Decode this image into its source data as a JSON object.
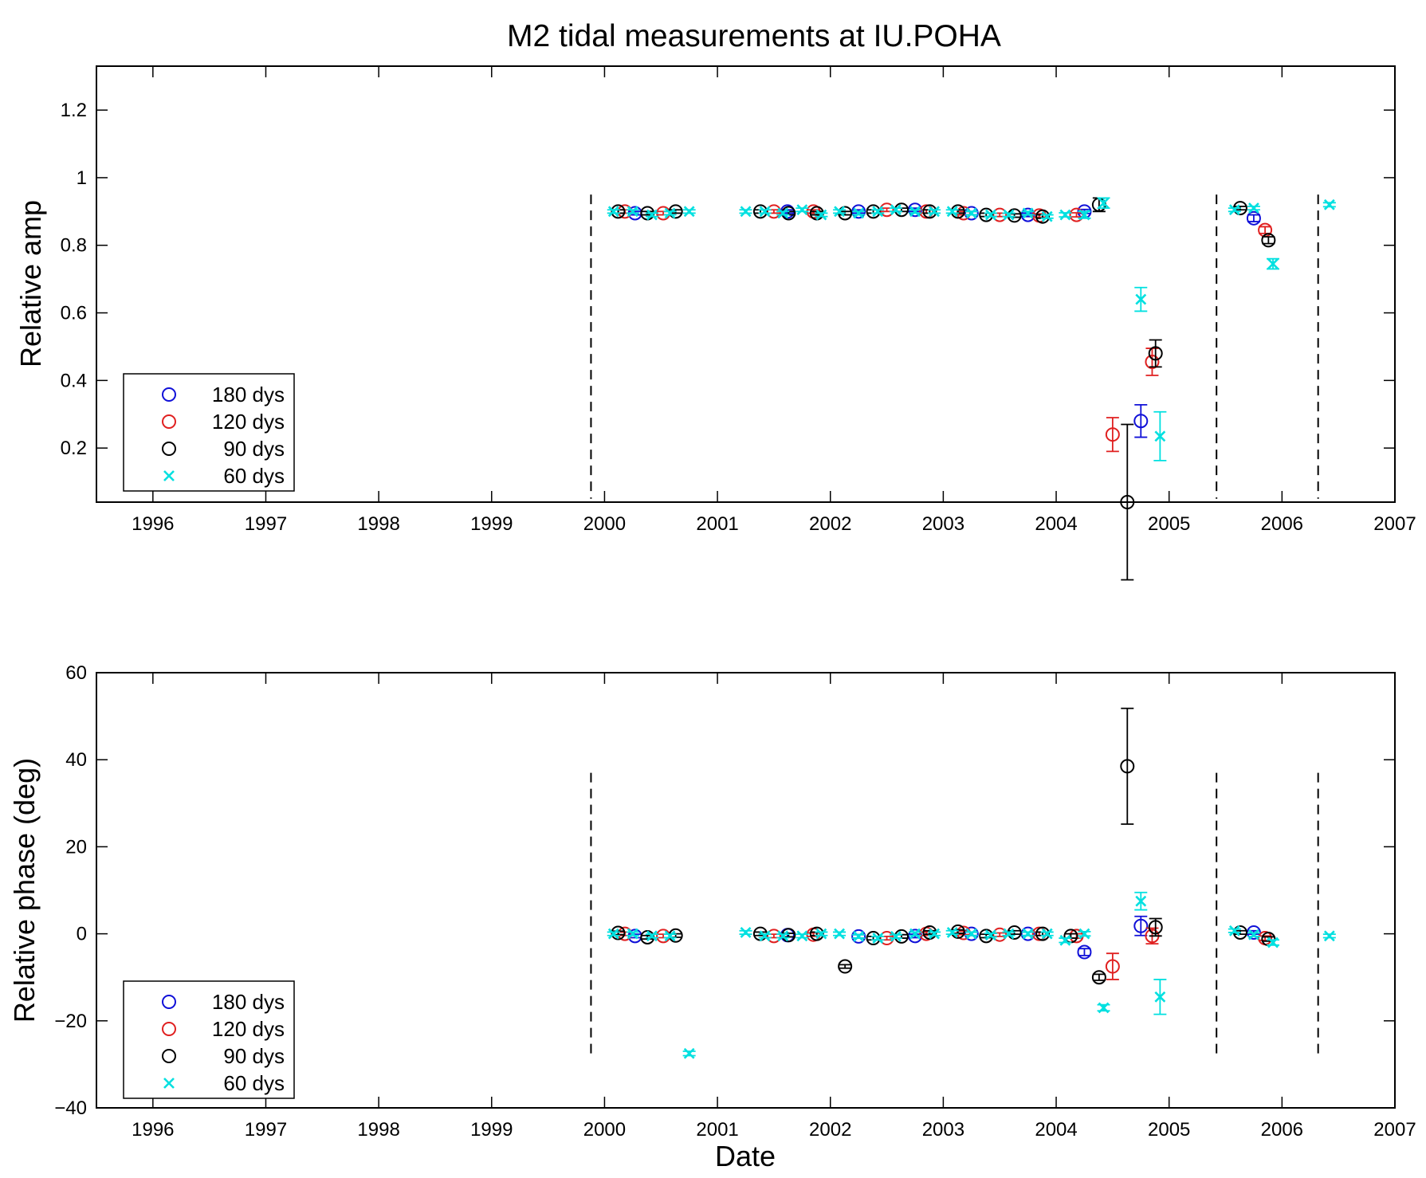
{
  "figure": {
    "title": "M2 tidal measurements at IU.POHA"
  },
  "chart_data": [
    {
      "type": "scatter",
      "title": "M2 tidal measurements at IU.POHA",
      "xlabel": "",
      "ylabel": "Relative amp",
      "x_unit": "year",
      "xlim": [
        1995.5,
        2007
      ],
      "ylim": [
        0.04,
        1.33
      ],
      "xticks": [
        1996,
        1997,
        1998,
        1999,
        2000,
        2001,
        2002,
        2003,
        2004,
        2005,
        2006,
        2007
      ],
      "xtick_labels": [
        "1996",
        "1997",
        "1998",
        "1999",
        "2000",
        "2001",
        "2002",
        "2003",
        "2004",
        "2005",
        "2006",
        "2007"
      ],
      "yticks": [
        0.2,
        0.4,
        0.6,
        0.8,
        1.0,
        1.2
      ],
      "ytick_labels": [
        "0.2",
        "0.4",
        "0.6",
        "0.8",
        "1",
        "1.2"
      ],
      "vlines": [
        1999.88,
        2005.42,
        2006.32
      ],
      "vline_span": [
        0.05,
        0.95
      ],
      "grid": false,
      "legend": "bottom-left",
      "series": [
        {
          "name": "180 dys",
          "marker": "circle",
          "color": "#1010d8",
          "points": [
            [
              2000.27,
              0.895,
              0.005
            ],
            [
              2001.62,
              0.9,
              0.005
            ],
            [
              2002.25,
              0.9,
              0.005
            ],
            [
              2002.75,
              0.905,
              0.005
            ],
            [
              2003.25,
              0.895,
              0.005
            ],
            [
              2003.75,
              0.89,
              0.005
            ],
            [
              2004.25,
              0.9,
              0.006
            ],
            [
              2004.75,
              0.28,
              0.048
            ],
            [
              2005.75,
              0.88,
              0.01
            ]
          ]
        },
        {
          "name": "120 dys",
          "marker": "circle",
          "color": "#e02020",
          "points": [
            [
              2000.18,
              0.9,
              0.005
            ],
            [
              2000.52,
              0.895,
              0.005
            ],
            [
              2001.5,
              0.9,
              0.005
            ],
            [
              2001.85,
              0.9,
              0.005
            ],
            [
              2002.5,
              0.905,
              0.005
            ],
            [
              2002.85,
              0.9,
              0.005
            ],
            [
              2003.18,
              0.895,
              0.005
            ],
            [
              2003.5,
              0.89,
              0.005
            ],
            [
              2003.85,
              0.888,
              0.005
            ],
            [
              2004.18,
              0.89,
              0.006
            ],
            [
              2004.5,
              0.24,
              0.05
            ],
            [
              2004.85,
              0.455,
              0.04
            ],
            [
              2005.85,
              0.845,
              0.01
            ]
          ]
        },
        {
          "name": "90 dys",
          "marker": "circle",
          "color": "#000000",
          "points": [
            [
              2000.12,
              0.9,
              0.005
            ],
            [
              2000.38,
              0.895,
              0.005
            ],
            [
              2000.63,
              0.9,
              0.005
            ],
            [
              2001.38,
              0.9,
              0.005
            ],
            [
              2001.63,
              0.895,
              0.005
            ],
            [
              2001.88,
              0.895,
              0.005
            ],
            [
              2002.13,
              0.895,
              0.005
            ],
            [
              2002.38,
              0.9,
              0.005
            ],
            [
              2002.63,
              0.905,
              0.005
            ],
            [
              2002.88,
              0.9,
              0.005
            ],
            [
              2003.13,
              0.9,
              0.005
            ],
            [
              2003.38,
              0.89,
              0.005
            ],
            [
              2003.63,
              0.888,
              0.005
            ],
            [
              2003.88,
              0.885,
              0.005
            ],
            [
              2004.38,
              0.92,
              0.02
            ],
            [
              2004.63,
              0.04,
              0.23
            ],
            [
              2004.88,
              0.48,
              0.04
            ],
            [
              2005.63,
              0.91,
              0.005
            ],
            [
              2005.88,
              0.815,
              0.01
            ]
          ]
        },
        {
          "name": "60 dys",
          "marker": "x",
          "color": "#00e0e0",
          "points": [
            [
              2000.08,
              0.9,
              0.005
            ],
            [
              2000.25,
              0.9,
              0.005
            ],
            [
              2000.42,
              0.89,
              0.005
            ],
            [
              2000.58,
              0.895,
              0.005
            ],
            [
              2000.75,
              0.9,
              0.005
            ],
            [
              2001.25,
              0.9,
              0.005
            ],
            [
              2001.42,
              0.9,
              0.005
            ],
            [
              2001.58,
              0.895,
              0.005
            ],
            [
              2001.75,
              0.905,
              0.005
            ],
            [
              2001.92,
              0.89,
              0.005
            ],
            [
              2002.08,
              0.9,
              0.005
            ],
            [
              2002.25,
              0.895,
              0.005
            ],
            [
              2002.42,
              0.9,
              0.005
            ],
            [
              2002.58,
              0.905,
              0.005
            ],
            [
              2002.75,
              0.9,
              0.005
            ],
            [
              2002.92,
              0.9,
              0.005
            ],
            [
              2003.08,
              0.9,
              0.005
            ],
            [
              2003.25,
              0.895,
              0.005
            ],
            [
              2003.42,
              0.89,
              0.005
            ],
            [
              2003.58,
              0.89,
              0.005
            ],
            [
              2003.75,
              0.895,
              0.005
            ],
            [
              2003.92,
              0.885,
              0.005
            ],
            [
              2004.08,
              0.89,
              0.006
            ],
            [
              2004.25,
              0.89,
              0.01
            ],
            [
              2004.42,
              0.925,
              0.015
            ],
            [
              2004.75,
              0.64,
              0.035
            ],
            [
              2004.92,
              0.235,
              0.072
            ],
            [
              2005.58,
              0.905,
              0.005
            ],
            [
              2005.75,
              0.91,
              0.005
            ],
            [
              2005.92,
              0.745,
              0.015
            ],
            [
              2006.42,
              0.92,
              0.006
            ]
          ]
        }
      ]
    },
    {
      "type": "scatter",
      "xlabel": "Date",
      "ylabel": "Relative phase (deg)",
      "x_unit": "year",
      "xlim": [
        1995.5,
        2007
      ],
      "ylim": [
        -40,
        60
      ],
      "xticks": [
        1996,
        1997,
        1998,
        1999,
        2000,
        2001,
        2002,
        2003,
        2004,
        2005,
        2006,
        2007
      ],
      "xtick_labels": [
        "1996",
        "1997",
        "1998",
        "1999",
        "2000",
        "2001",
        "2002",
        "2003",
        "2004",
        "2005",
        "2006",
        "2007"
      ],
      "yticks": [
        -40,
        -20,
        0,
        20,
        40,
        60
      ],
      "ytick_labels": [
        "−40",
        "−20",
        "0",
        "20",
        "40",
        "60"
      ],
      "vlines": [
        1999.88,
        2005.42,
        2006.32
      ],
      "vline_span": [
        -28,
        37
      ],
      "grid": false,
      "legend": "bottom-left",
      "series": [
        {
          "name": "180 dys",
          "marker": "circle",
          "color": "#1010d8",
          "points": [
            [
              2000.27,
              -0.5,
              0.4
            ],
            [
              2001.62,
              -0.3,
              0.4
            ],
            [
              2002.25,
              -0.6,
              0.4
            ],
            [
              2002.75,
              -0.5,
              0.4
            ],
            [
              2003.25,
              0.0,
              0.4
            ],
            [
              2003.75,
              0.0,
              0.4
            ],
            [
              2004.25,
              -4.2,
              0.8
            ],
            [
              2004.75,
              1.8,
              2.2
            ],
            [
              2005.75,
              0.3,
              0.4
            ]
          ]
        },
        {
          "name": "120 dys",
          "marker": "circle",
          "color": "#e02020",
          "points": [
            [
              2000.18,
              0.0,
              0.4
            ],
            [
              2000.52,
              -0.5,
              0.4
            ],
            [
              2001.5,
              -0.5,
              0.4
            ],
            [
              2001.85,
              -0.2,
              0.4
            ],
            [
              2002.5,
              -1.0,
              0.4
            ],
            [
              2002.85,
              0.0,
              0.4
            ],
            [
              2003.18,
              0.2,
              0.4
            ],
            [
              2003.5,
              -0.2,
              0.4
            ],
            [
              2003.85,
              0.0,
              0.4
            ],
            [
              2004.18,
              -0.5,
              0.5
            ],
            [
              2004.5,
              -7.5,
              3.0
            ],
            [
              2004.85,
              -0.5,
              1.8
            ],
            [
              2005.85,
              -1.0,
              0.5
            ]
          ]
        },
        {
          "name": "90 dys",
          "marker": "circle",
          "color": "#000000",
          "points": [
            [
              2000.12,
              0.2,
              0.4
            ],
            [
              2000.38,
              -0.8,
              0.4
            ],
            [
              2000.63,
              -0.4,
              0.4
            ],
            [
              2001.38,
              0.0,
              0.4
            ],
            [
              2001.63,
              -0.3,
              0.4
            ],
            [
              2001.88,
              0.0,
              0.4
            ],
            [
              2002.13,
              -7.5,
              0.4
            ],
            [
              2002.38,
              -1.0,
              0.4
            ],
            [
              2002.63,
              -0.6,
              0.4
            ],
            [
              2002.88,
              0.3,
              0.4
            ],
            [
              2003.13,
              0.5,
              0.4
            ],
            [
              2003.38,
              -0.5,
              0.4
            ],
            [
              2003.63,
              0.3,
              0.4
            ],
            [
              2003.88,
              0.0,
              0.4
            ],
            [
              2004.13,
              -0.5,
              0.5
            ],
            [
              2004.38,
              -10.0,
              0.7
            ],
            [
              2004.63,
              38.5,
              13.3
            ],
            [
              2004.88,
              1.5,
              2.0
            ],
            [
              2005.63,
              0.3,
              0.4
            ],
            [
              2005.88,
              -1.2,
              0.5
            ]
          ]
        },
        {
          "name": "60 dys",
          "marker": "x",
          "color": "#00e0e0",
          "points": [
            [
              2000.08,
              0.0,
              0.4
            ],
            [
              2000.25,
              0.0,
              0.4
            ],
            [
              2000.42,
              -0.5,
              0.4
            ],
            [
              2000.58,
              -0.5,
              0.4
            ],
            [
              2000.75,
              -27.5,
              0.5
            ],
            [
              2001.25,
              0.3,
              0.4
            ],
            [
              2001.42,
              -0.5,
              0.4
            ],
            [
              2001.58,
              -0.5,
              0.4
            ],
            [
              2001.75,
              -0.5,
              0.4
            ],
            [
              2001.92,
              0.0,
              0.4
            ],
            [
              2002.08,
              0.0,
              0.4
            ],
            [
              2002.25,
              -0.6,
              0.4
            ],
            [
              2002.42,
              -1.0,
              0.4
            ],
            [
              2002.58,
              -0.6,
              0.4
            ],
            [
              2002.75,
              0.0,
              0.4
            ],
            [
              2002.92,
              0.0,
              0.4
            ],
            [
              2003.08,
              0.3,
              0.4
            ],
            [
              2003.25,
              0.0,
              0.4
            ],
            [
              2003.42,
              -0.3,
              0.4
            ],
            [
              2003.58,
              0.0,
              0.4
            ],
            [
              2003.75,
              0.0,
              0.4
            ],
            [
              2003.92,
              0.0,
              0.4
            ],
            [
              2004.08,
              -1.5,
              0.5
            ],
            [
              2004.25,
              0.0,
              0.5
            ],
            [
              2004.42,
              -17.0,
              0.7
            ],
            [
              2004.75,
              7.5,
              2.0
            ],
            [
              2004.92,
              -14.5,
              4.0
            ],
            [
              2005.58,
              0.7,
              0.4
            ],
            [
              2005.75,
              -0.2,
              0.4
            ],
            [
              2005.92,
              -2.0,
              0.6
            ],
            [
              2006.42,
              -0.5,
              0.4
            ]
          ]
        }
      ]
    }
  ]
}
